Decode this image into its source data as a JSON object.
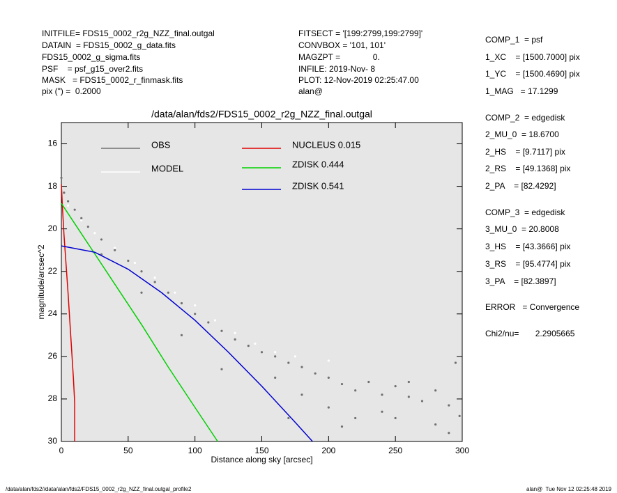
{
  "header": {
    "left": [
      "INITFILE= FDS15_0002_r2g_NZZ_final.outgal",
      "DATAIN  = FDS15_0002_g_data.fits",
      "FDS15_0002_g_sigma.fits",
      "PSF    = psf_g15_over2.fits",
      "MASK   = FDS15_0002_r_finmask.fits",
      "pix (\") =  0.2000"
    ],
    "middle": [
      "FITSECT = '[199:2799,199:2799]'",
      "CONVBOX = '101, 101'",
      "MAGZPT =              0.",
      "INFILE: 2019-Nov- 8",
      "PLOT: 12-Nov-2019 02:25:47.00",
      "alan@"
    ]
  },
  "params": [
    "COMP_1  = psf",
    "1_XC    = [1500.7000] pix",
    "1_YC    = [1500.4690] pix",
    "1_MAG   = 17.1299",
    "COMP_2  = edgedisk",
    "2_MU_0  = 18.6700",
    "2_HS    = [9.7117] pix",
    "2_RS    = [49.1368] pix",
    "2_PA    = [82.4292]",
    "COMP_3  = edgedisk",
    "3_MU_0  = 20.8008",
    "3_HS    = [43.3666] pix",
    "3_RS    = [95.4774] pix",
    "3_PA    = [82.3897]",
    "ERROR   = Convergence",
    "Chi2/nu=       2.2905665"
  ],
  "footer": {
    "left": "/data/alan/fds2//data/alan/fds2/FDS15_0002_r2g_NZZ_final.outgal_profile2",
    "right": "alan@  Tue Nov 12 02:25:48 2019"
  },
  "chart_data": {
    "type": "scatter",
    "title": "/data/alan/fds2/FDS15_0002_r2g_NZZ_final.outgal",
    "x_label": "Distance along sky [arcsec]",
    "y_label": "magnitude/arcsec^2",
    "xlim": [
      0,
      300
    ],
    "ylim": [
      30,
      15
    ],
    "xticks": [
      0,
      50,
      100,
      150,
      200,
      250,
      300
    ],
    "yticks": [
      16,
      18,
      20,
      22,
      24,
      26,
      28,
      30
    ],
    "series": [
      {
        "name": "OBS",
        "color": "#707070",
        "mode": "markers",
        "x": [
          0,
          2,
          5,
          10,
          15,
          20,
          30,
          40,
          50,
          60,
          70,
          80,
          90,
          100,
          110,
          120,
          130,
          140,
          150,
          160,
          170,
          180,
          190,
          200,
          210,
          220,
          230,
          240,
          250,
          260,
          270,
          280,
          290,
          298,
          160,
          180,
          200,
          220,
          240,
          260,
          280,
          295,
          170,
          210,
          250,
          290,
          30,
          60,
          90,
          120
        ],
        "values": [
          17.6,
          18.3,
          18.7,
          19.1,
          19.5,
          19.9,
          20.5,
          21.0,
          21.5,
          22.0,
          22.5,
          23.0,
          23.5,
          24.0,
          24.4,
          24.8,
          25.2,
          25.5,
          25.8,
          26.0,
          26.3,
          26.5,
          26.8,
          27.0,
          27.3,
          27.6,
          27.2,
          27.8,
          27.4,
          27.9,
          28.1,
          27.6,
          28.3,
          28.8,
          27.0,
          27.8,
          28.4,
          28.9,
          28.6,
          27.2,
          29.2,
          26.3,
          28.9,
          29.3,
          28.9,
          29.6,
          21.2,
          23.0,
          25.0,
          26.6
        ]
      },
      {
        "name": "MODEL",
        "color": "#ffffff",
        "mode": "markers",
        "x": [
          5,
          15,
          25,
          40,
          55,
          70,
          85,
          100,
          115,
          130,
          145,
          160,
          175,
          200
        ],
        "values": [
          18.9,
          19.6,
          20.2,
          20.9,
          21.6,
          22.3,
          23.0,
          23.6,
          24.3,
          24.9,
          25.4,
          25.8,
          26.0,
          26.2
        ]
      },
      {
        "name": "NUCLEUS 0.015",
        "color": "#e00000",
        "mode": "lines",
        "x": [
          0,
          1,
          2,
          3,
          4,
          5,
          6,
          7,
          8,
          9,
          10,
          10
        ],
        "values": [
          17.9,
          19.2,
          20.3,
          21.2,
          22.1,
          23.0,
          24.0,
          25.0,
          26.0,
          27.0,
          28.2,
          30
        ]
      },
      {
        "name": "ZDISK 0.444",
        "color": "#00d000",
        "mode": "lines",
        "x": [
          0,
          20,
          40,
          60,
          80,
          100,
          117
        ],
        "values": [
          18.8,
          20.7,
          22.6,
          24.5,
          26.5,
          28.4,
          30
        ]
      },
      {
        "name": "ZDISK 0.541",
        "color": "#0000d0",
        "mode": "lines",
        "x": [
          0,
          25,
          50,
          75,
          100,
          125,
          150,
          175,
          188
        ],
        "values": [
          20.8,
          21.1,
          21.9,
          23.0,
          24.3,
          25.8,
          27.4,
          29.1,
          30
        ]
      }
    ]
  }
}
